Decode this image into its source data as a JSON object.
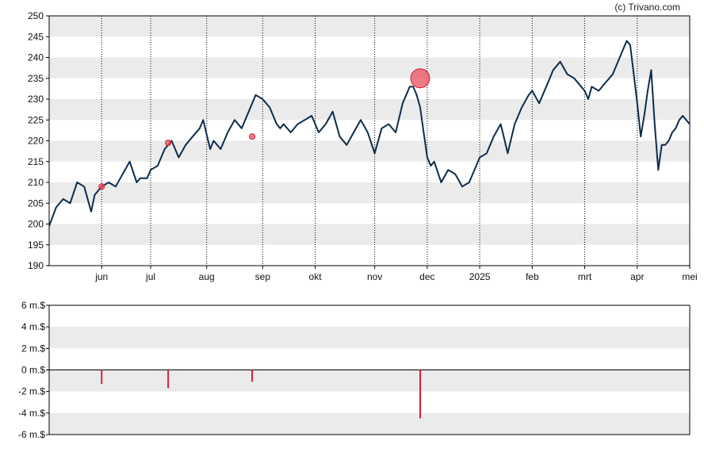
{
  "credit": "(c) Trivano.com",
  "colors": {
    "line": "#0d2d4d",
    "band": "#ebebeb",
    "marker": "#e8505b",
    "bar": "#d6203a",
    "axis": "#000000"
  },
  "chart_data": [
    {
      "type": "line",
      "title": "",
      "xlabel": "",
      "ylabel": "",
      "x_unit": "trading-day index",
      "ylim": [
        190,
        250
      ],
      "yticks": [
        190,
        195,
        200,
        205,
        210,
        215,
        220,
        225,
        230,
        235,
        240,
        245,
        250
      ],
      "grid": "horizontal bands",
      "month_ticks": [
        {
          "label": "jun",
          "x": 15
        },
        {
          "label": "jul",
          "x": 29
        },
        {
          "label": "aug",
          "x": 45
        },
        {
          "label": "sep",
          "x": 61
        },
        {
          "label": "okt",
          "x": 76
        },
        {
          "label": "nov",
          "x": 93
        },
        {
          "label": "dec",
          "x": 108
        },
        {
          "label": "2025",
          "x": 123
        },
        {
          "label": "feb",
          "x": 138
        },
        {
          "label": "mrt",
          "x": 153
        },
        {
          "label": "apr",
          "x": 168
        },
        {
          "label": "mei",
          "x": 183
        }
      ],
      "series": [
        {
          "x": [
            0,
            2,
            4,
            6,
            8,
            10,
            12,
            13,
            14,
            15,
            17,
            19,
            21,
            23,
            25,
            26,
            28,
            29,
            31,
            33,
            35,
            37,
            39,
            41,
            43,
            44,
            46,
            47,
            49,
            51,
            53,
            55,
            57,
            58,
            59,
            61,
            63,
            64,
            65,
            66,
            67,
            69,
            71,
            73,
            75,
            77,
            79,
            81,
            83,
            85,
            87,
            89,
            91,
            93,
            95,
            97,
            99,
            101,
            103,
            104,
            105,
            106,
            107,
            108,
            109,
            110,
            112,
            114,
            116,
            118,
            120,
            122,
            123,
            125,
            127,
            129,
            131,
            133,
            135,
            137,
            138,
            140,
            142,
            144,
            146,
            148,
            150,
            152,
            153,
            154,
            155,
            157,
            159,
            161,
            163,
            165,
            166,
            167,
            168,
            169,
            170,
            171,
            172,
            173,
            174,
            175,
            176,
            177,
            178,
            179,
            180,
            181,
            182,
            183
          ],
          "y": [
            199.5,
            204,
            206,
            205,
            210,
            209,
            203,
            207,
            208,
            209,
            210,
            209,
            212,
            215,
            210,
            211,
            211,
            213,
            214,
            218,
            220,
            216,
            219,
            221,
            223,
            225,
            218,
            220,
            218,
            222,
            225,
            223,
            227,
            229,
            231,
            230,
            228,
            226,
            224,
            223,
            224,
            222,
            224,
            225,
            226,
            222,
            224,
            227,
            221,
            219,
            222,
            225,
            222,
            217,
            223,
            224,
            222,
            229,
            233,
            233,
            231,
            228,
            222,
            216,
            214,
            215,
            210,
            213,
            212,
            209,
            210,
            214,
            216,
            217,
            221,
            224,
            217,
            224,
            228,
            231,
            232,
            229,
            233,
            237,
            239,
            236,
            235,
            233,
            232,
            230,
            233,
            232,
            234,
            236,
            240,
            244,
            243,
            236,
            229,
            221,
            226,
            232,
            237,
            224,
            213,
            219,
            219,
            220,
            222,
            223,
            225,
            226,
            225,
            224
          ]
        }
      ],
      "markers": [
        {
          "x": 15,
          "y": 209,
          "size": "small"
        },
        {
          "x": 34,
          "y": 219.5,
          "size": "small"
        },
        {
          "x": 58,
          "y": 221,
          "size": "small"
        },
        {
          "x": 106,
          "y": 235,
          "size": "large"
        }
      ]
    },
    {
      "type": "bar",
      "title": "",
      "xlabel": "",
      "ylabel": "",
      "ylim": [
        -6,
        6
      ],
      "yticks": [
        -6,
        -4,
        -2,
        0,
        2,
        4,
        6
      ],
      "ytick_labels": [
        "-6 m.$",
        "-4 m.$",
        "-2 m.$",
        "0 m.$",
        "2 m.$",
        "4 m.$",
        "6 m.$"
      ],
      "grid": "horizontal bands",
      "bars": [
        {
          "x": 15,
          "value": -1.3
        },
        {
          "x": 34,
          "value": -1.7
        },
        {
          "x": 58,
          "value": -1.1
        },
        {
          "x": 106,
          "value": -4.5
        }
      ]
    }
  ]
}
